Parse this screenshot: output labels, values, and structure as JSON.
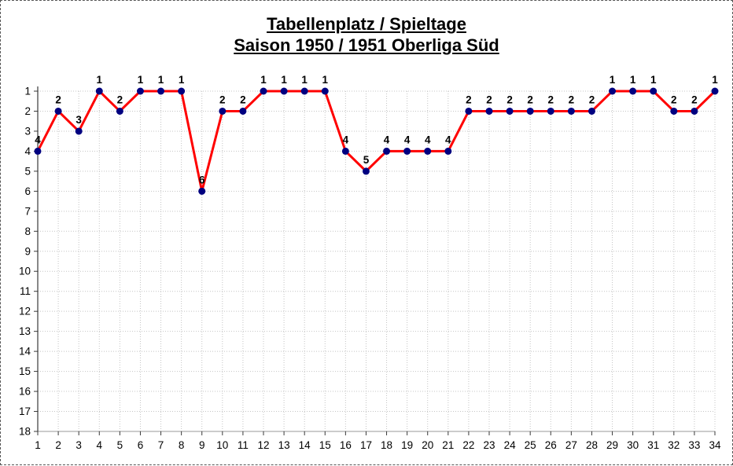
{
  "chart_data": {
    "type": "line",
    "title": "Tabellenplatz / Spieltage",
    "subtitle": "Saison 1950 / 1951 Oberliga Süd",
    "xlabel": "",
    "ylabel": "",
    "x": [
      1,
      2,
      3,
      4,
      5,
      6,
      7,
      8,
      9,
      10,
      11,
      12,
      13,
      14,
      15,
      16,
      17,
      18,
      19,
      20,
      21,
      22,
      23,
      24,
      25,
      26,
      27,
      28,
      29,
      30,
      31,
      32,
      33,
      34
    ],
    "values": [
      4,
      2,
      3,
      1,
      2,
      1,
      1,
      1,
      6,
      2,
      2,
      1,
      1,
      1,
      1,
      4,
      5,
      4,
      4,
      4,
      4,
      2,
      2,
      2,
      2,
      2,
      2,
      2,
      1,
      1,
      1,
      2,
      2,
      1
    ],
    "data_labels": [
      "4",
      "2",
      "3",
      "1",
      "2",
      "1",
      "1",
      "1",
      "6",
      "2",
      "2",
      "1",
      "1",
      "1",
      "1",
      "4",
      "5",
      "4",
      "4",
      "4",
      "4",
      "2",
      "2",
      "2",
      "2",
      "2",
      "2",
      "2",
      "1",
      "1",
      "1",
      "2",
      "2",
      "1"
    ],
    "xlim": [
      1,
      34
    ],
    "ylim": [
      1,
      18
    ],
    "y_inverted": true,
    "x_ticks": [
      1,
      2,
      3,
      4,
      5,
      6,
      7,
      8,
      9,
      10,
      11,
      12,
      13,
      14,
      15,
      16,
      17,
      18,
      19,
      20,
      21,
      22,
      23,
      24,
      25,
      26,
      27,
      28,
      29,
      30,
      31,
      32,
      33,
      34
    ],
    "y_ticks": [
      1,
      2,
      3,
      4,
      5,
      6,
      7,
      8,
      9,
      10,
      11,
      12,
      13,
      14,
      15,
      16,
      17,
      18
    ],
    "grid": true,
    "legend": "none",
    "colors": {
      "line": "#ff0000",
      "marker": "#000080",
      "grid": "#c4c4c4",
      "axis": "#3a3a3a",
      "category_axis": "#9a9a9a",
      "text": "#000000"
    }
  }
}
